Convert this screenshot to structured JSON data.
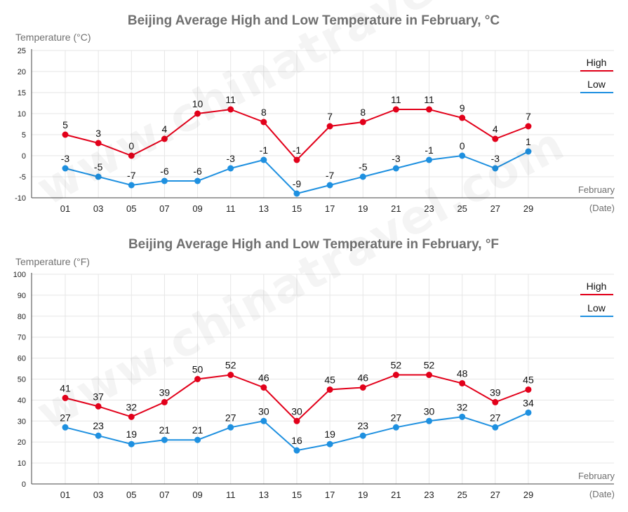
{
  "watermark": "www.chinatravel.com",
  "colors": {
    "high": "#e2001a",
    "low": "#1e90e0",
    "axis": "#444444",
    "grid": "#e6e6e6",
    "title": "#707070",
    "label": "#707070"
  },
  "chart_data": [
    {
      "type": "line",
      "title": "Beijing Average High and Low Temperature in February, °C",
      "ylabel": "Temperature (°C)",
      "xlabel": "February",
      "xlabel2": "(Date)",
      "ylim": [
        -10,
        25
      ],
      "yticks": [
        -10,
        -5,
        0,
        5,
        10,
        15,
        20,
        25
      ],
      "categories": [
        "01",
        "03",
        "05",
        "07",
        "09",
        "11",
        "13",
        "15",
        "17",
        "19",
        "21",
        "23",
        "25",
        "27",
        "29"
      ],
      "legend_position": "top-right",
      "series": [
        {
          "name": "High",
          "values": [
            5,
            3,
            0,
            4,
            10,
            11,
            8,
            -1,
            7,
            8,
            11,
            11,
            9,
            4,
            7
          ]
        },
        {
          "name": "Low",
          "values": [
            -3,
            -5,
            -7,
            -6,
            -6,
            -3,
            -1,
            -9,
            -7,
            -5,
            -3,
            -1,
            0,
            -3,
            1
          ]
        }
      ]
    },
    {
      "type": "line",
      "title": "Beijing Average High and Low Temperature in February, °F",
      "ylabel": "Temperature (°F)",
      "xlabel": "February",
      "xlabel2": "(Date)",
      "ylim": [
        0,
        100
      ],
      "yticks": [
        0,
        10,
        20,
        30,
        40,
        50,
        60,
        70,
        80,
        90,
        100
      ],
      "categories": [
        "01",
        "03",
        "05",
        "07",
        "09",
        "11",
        "13",
        "15",
        "17",
        "19",
        "21",
        "23",
        "25",
        "27",
        "29"
      ],
      "legend_position": "top-right",
      "series": [
        {
          "name": "High",
          "values": [
            41,
            37,
            32,
            39,
            50,
            52,
            46,
            30,
            45,
            46,
            52,
            52,
            48,
            39,
            45
          ]
        },
        {
          "name": "Low",
          "values": [
            27,
            23,
            19,
            21,
            21,
            27,
            30,
            16,
            19,
            23,
            27,
            30,
            32,
            27,
            34
          ]
        }
      ]
    }
  ]
}
